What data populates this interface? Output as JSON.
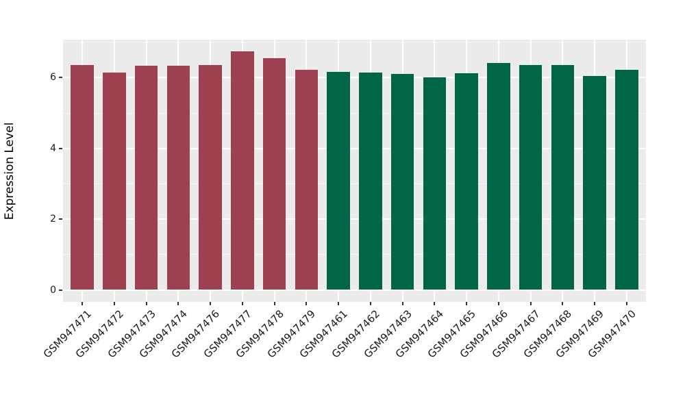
{
  "chart_data": {
    "type": "bar",
    "title": "",
    "xlabel": "",
    "ylabel": "Expression Level",
    "yticks": [
      0,
      2,
      4,
      6
    ],
    "ylim": [
      0,
      7.07
    ],
    "legend_position": "none",
    "grid": "white major gridlines at even values and category centers, faint minor gridlines at odd values, on gray panel",
    "panel_bg": "#EBEBEB",
    "grid_color": "#FFFFFF",
    "tick_color": "#333333",
    "palette": {
      "groupA": "#9D4151",
      "groupB": "#006647"
    },
    "categories": [
      "GSM947471",
      "GSM947472",
      "GSM947473",
      "GSM947474",
      "GSM947476",
      "GSM947477",
      "GSM947478",
      "GSM947479",
      "GSM947461",
      "GSM947462",
      "GSM947463",
      "GSM947464",
      "GSM947465",
      "GSM947466",
      "GSM947467",
      "GSM947468",
      "GSM947469",
      "GSM947470"
    ],
    "bars": [
      {
        "label": "GSM947471",
        "value": 6.36,
        "group": "groupA"
      },
      {
        "label": "GSM947472",
        "value": 6.14,
        "group": "groupA"
      },
      {
        "label": "GSM947473",
        "value": 6.33,
        "group": "groupA"
      },
      {
        "label": "GSM947474",
        "value": 6.34,
        "group": "groupA"
      },
      {
        "label": "GSM947476",
        "value": 6.36,
        "group": "groupA"
      },
      {
        "label": "GSM947477",
        "value": 6.75,
        "group": "groupA"
      },
      {
        "label": "GSM947478",
        "value": 6.55,
        "group": "groupA"
      },
      {
        "label": "GSM947479",
        "value": 6.22,
        "group": "groupA"
      },
      {
        "label": "GSM947461",
        "value": 6.16,
        "group": "groupB"
      },
      {
        "label": "GSM947462",
        "value": 6.14,
        "group": "groupB"
      },
      {
        "label": "GSM947463",
        "value": 6.11,
        "group": "groupB"
      },
      {
        "label": "GSM947464",
        "value": 6.01,
        "group": "groupB"
      },
      {
        "label": "GSM947465",
        "value": 6.13,
        "group": "groupB"
      },
      {
        "label": "GSM947466",
        "value": 6.41,
        "group": "groupB"
      },
      {
        "label": "GSM947467",
        "value": 6.35,
        "group": "groupB"
      },
      {
        "label": "GSM947468",
        "value": 6.36,
        "group": "groupB"
      },
      {
        "label": "GSM947469",
        "value": 6.05,
        "group": "groupB"
      },
      {
        "label": "GSM947470",
        "value": 6.21,
        "group": "groupB"
      }
    ]
  }
}
